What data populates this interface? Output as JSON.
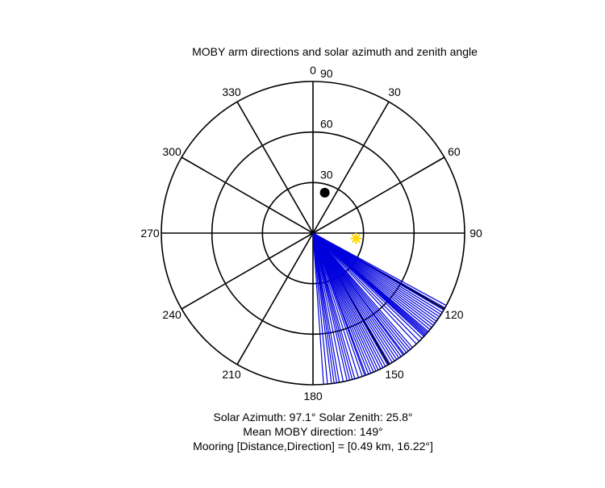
{
  "chart_data": {
    "type": "polar",
    "title": "MOBY arm directions and solar azimuth and zenith angle",
    "angular_axis": {
      "direction": "clockwise",
      "zero_at": "top",
      "tick_labels": [
        "0",
        "30",
        "60",
        "90",
        "120",
        "150",
        "180",
        "210",
        "240",
        "270",
        "300",
        "330"
      ]
    },
    "radial_axis": {
      "range": [
        0,
        90
      ],
      "tick_labels": [
        "30",
        "60",
        "90"
      ]
    },
    "series": [
      {
        "kind": "radial-lines",
        "color": "#0000dd",
        "radius": 90,
        "angles_deg": [
          118.5,
          119.5,
          120.5,
          121.5,
          122.5,
          123.5,
          124.5,
          125.5,
          126.5,
          127.5,
          128.5,
          129.5,
          130.5,
          131.0,
          131.5,
          132.0,
          132.5,
          133.0,
          134.0,
          135.5,
          137.0,
          139.0,
          140.0,
          141.0,
          142.0,
          143.0,
          143.5,
          144.5,
          145.5,
          146.5,
          147.5,
          148.5,
          149.5,
          150.5,
          151.5,
          152.5,
          153.5,
          154.5,
          155.5,
          156.5,
          157.5,
          158.5,
          159.5,
          160.0,
          161.0,
          162.5,
          164.0,
          165.0,
          166.0,
          167.0,
          168.5,
          170.0,
          171.0,
          172.0,
          173.0,
          174.5,
          176.0
        ]
      },
      {
        "kind": "marker",
        "marker": "circle",
        "color": "#000000",
        "theta": 16.22,
        "r": 25
      },
      {
        "kind": "marker",
        "marker": "asterisk",
        "color": "#ffd700",
        "theta": 97.1,
        "r": 25.8
      }
    ]
  },
  "footer": {
    "line1": "Solar Azimuth: 97.1°    Solar Zenith: 25.8°",
    "line2": "Mean MOBY direction: 149°",
    "line3": "Mooring [Distance,Direction] = [0.49 km, 16.22°]"
  }
}
